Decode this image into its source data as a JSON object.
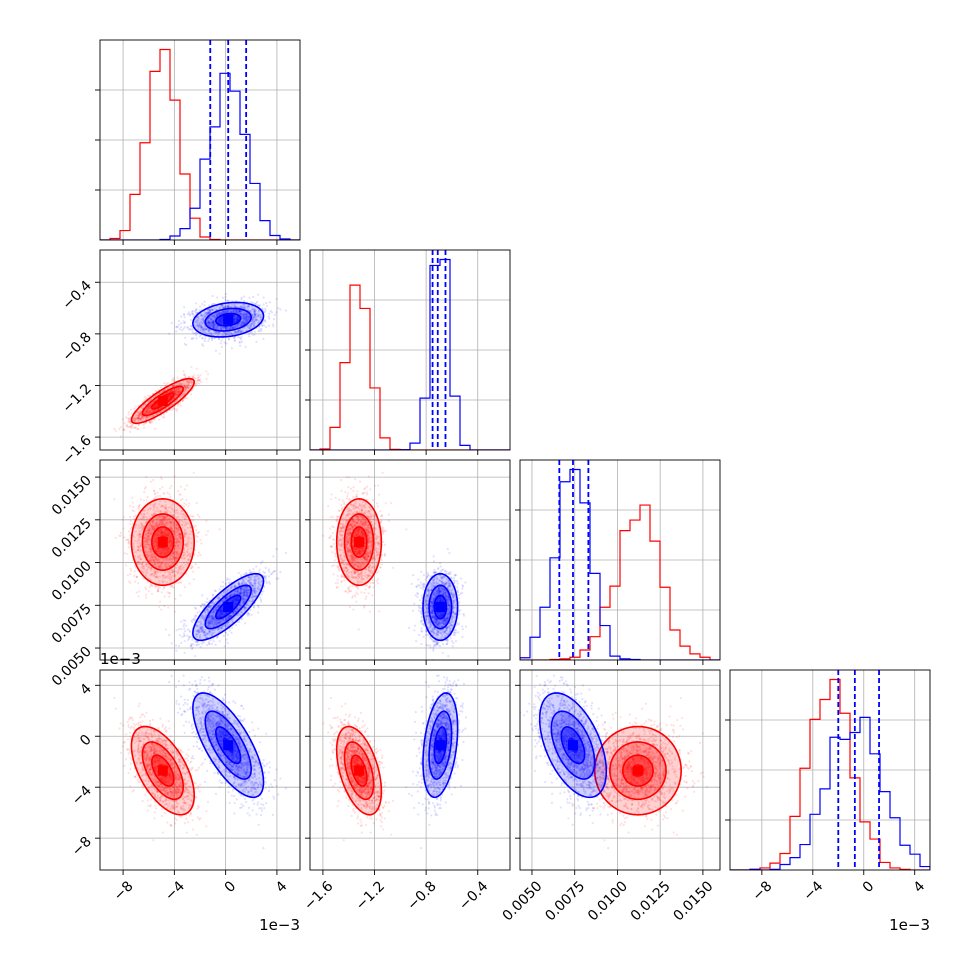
{
  "chart_data": {
    "type": "corner",
    "parameters": [
      {
        "id": "p1",
        "ticks": [
          "−8",
          "−4",
          "0",
          "4"
        ],
        "tick_values": [
          -8,
          -4,
          0,
          4
        ],
        "range": [
          -9.8,
          5.8
        ],
        "scale_label": "1e−3"
      },
      {
        "id": "p2",
        "ticks": [
          "−1.6",
          "−1.2",
          "−0.8",
          "−0.4"
        ],
        "tick_values": [
          -1.6,
          -1.2,
          -0.8,
          -0.4
        ],
        "range": [
          -1.7,
          -0.15
        ]
      },
      {
        "id": "p3",
        "ticks": [
          "0.0050",
          "0.0075",
          "0.0100",
          "0.0125",
          "0.0150"
        ],
        "tick_values": [
          0.005,
          0.0075,
          0.01,
          0.0125,
          0.015
        ],
        "range": [
          0.0043,
          0.016
        ]
      },
      {
        "id": "p4",
        "ticks": [
          "−8",
          "−4",
          "0",
          "4"
        ],
        "tick_values": [
          -8,
          -4,
          0,
          4
        ],
        "range": [
          -10.5,
          5.2
        ],
        "scale_label": "1e−3"
      }
    ],
    "series": [
      {
        "name": "red",
        "color": "#ff0000",
        "mean": [
          -4.9,
          -1.32,
          0.0112,
          -2.7
        ],
        "cov": [
          [
            1.5,
            0.09,
            0.0,
            -1.2
          ],
          [
            0.09,
            0.0075,
            0.0,
            -0.07
          ],
          [
            0.0,
            0.0,
            1.6e-06,
            0.0
          ],
          [
            -1.2,
            -0.07,
            0.0,
            3.0
          ]
        ]
      },
      {
        "name": "blue",
        "color": "#0000ff",
        "mean": [
          0.2,
          -0.69,
          0.0074,
          -0.7
        ],
        "cov": [
          [
            1.9,
            0.02,
            0.00105,
            -2.0
          ],
          [
            0.02,
            0.0045,
            0.0,
            0.045
          ],
          [
            0.00105,
            0.0,
            9.5e-07,
            -0.001
          ],
          [
            -2.0,
            0.045,
            -0.001,
            4.2
          ]
        ],
        "quantiles": [
          [
            -1.2,
            0.2,
            1.6
          ],
          [
            -0.75,
            -0.71,
            -0.65
          ],
          [
            0.0066,
            0.0074,
            0.0083
          ],
          [
            -2.0,
            -0.7,
            1.2
          ]
        ]
      }
    ],
    "grid": true
  },
  "colors": {
    "red": "#ff0000",
    "blue": "#0000ff",
    "grid": "#b0b0b0"
  }
}
